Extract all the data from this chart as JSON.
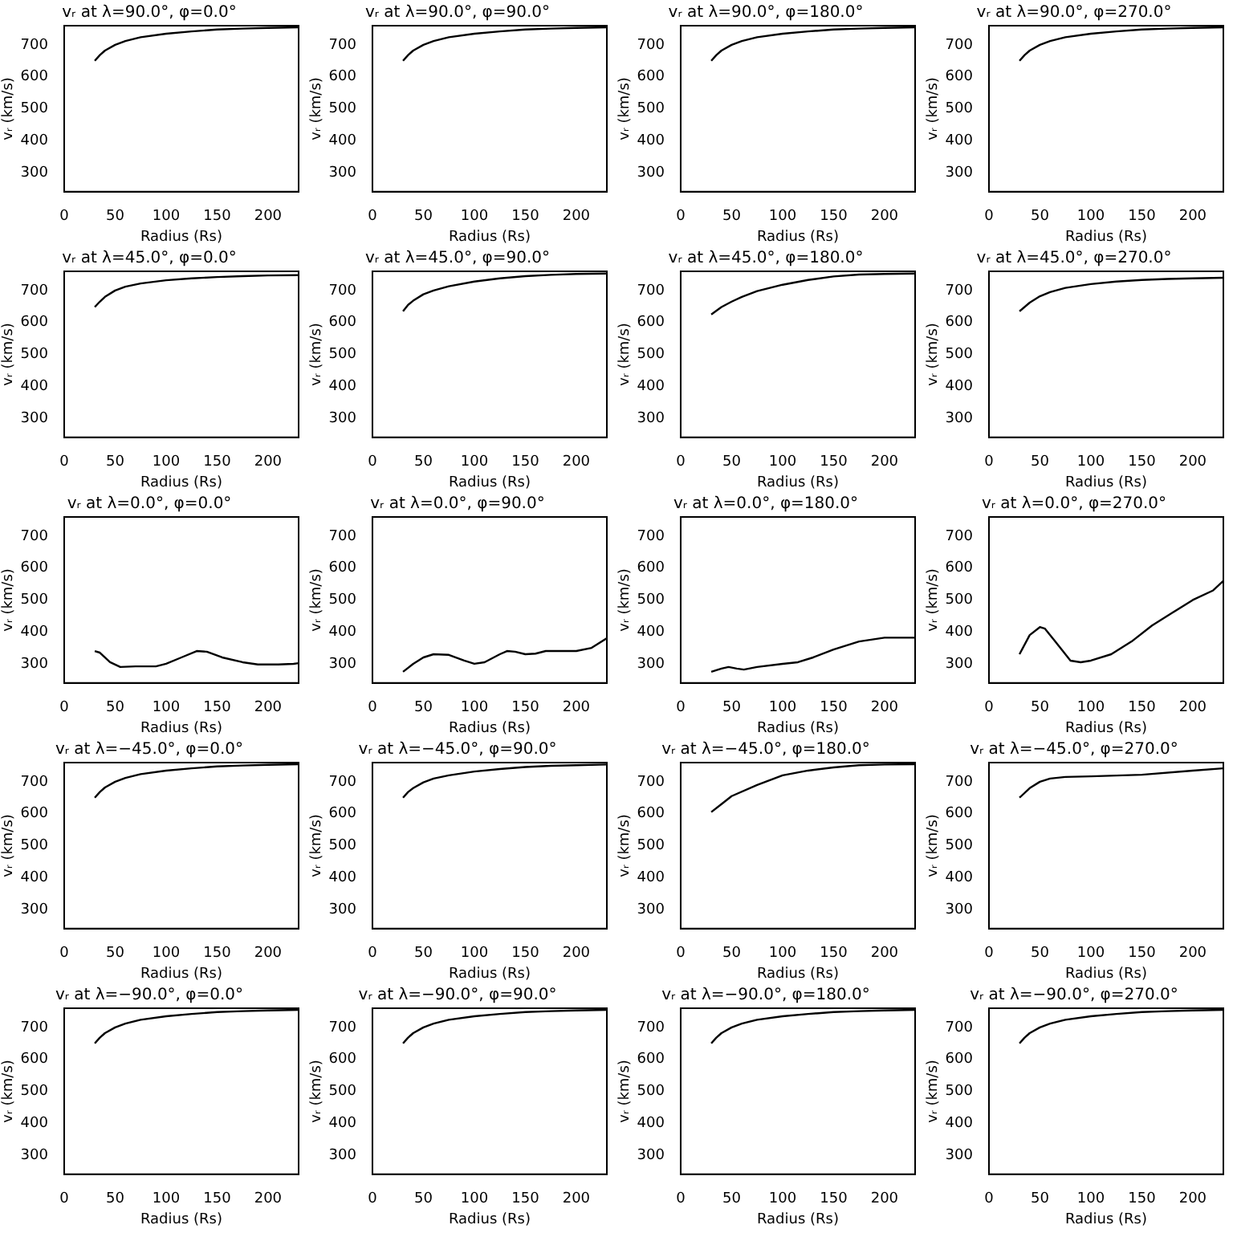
{
  "chart_data": [
    {
      "type": "line",
      "title": "vᵣ at λ=90.0°, φ=0.0°",
      "xlabel": "Radius (Rs)",
      "ylabel": "vᵣ (km/s)",
      "color": "#000000",
      "x": [
        30,
        35,
        40,
        50,
        60,
        75,
        100,
        125,
        150,
        175,
        200,
        230
      ],
      "values": [
        650,
        668,
        682,
        700,
        712,
        724,
        735,
        742,
        748,
        751,
        753,
        755
      ],
      "xlim": [
        0,
        230
      ],
      "ylim": [
        240,
        760
      ],
      "xticks": [
        0,
        50,
        100,
        150,
        200
      ],
      "yticks": [
        300,
        400,
        500,
        600,
        700
      ],
      "grid": false,
      "legend": false,
      "marker": "none"
    },
    {
      "type": "line",
      "title": "vᵣ at λ=90.0°, φ=90.0°",
      "xlabel": "Radius (Rs)",
      "ylabel": "vᵣ (km/s)",
      "color": "#000000",
      "x": [
        30,
        35,
        40,
        50,
        60,
        75,
        100,
        125,
        150,
        175,
        200,
        230
      ],
      "values": [
        650,
        668,
        682,
        700,
        712,
        724,
        735,
        742,
        748,
        751,
        753,
        755
      ],
      "xlim": [
        0,
        230
      ],
      "ylim": [
        240,
        760
      ],
      "xticks": [
        0,
        50,
        100,
        150,
        200
      ],
      "yticks": [
        300,
        400,
        500,
        600,
        700
      ],
      "grid": false,
      "legend": false,
      "marker": "none"
    },
    {
      "type": "line",
      "title": "vᵣ at λ=90.0°, φ=180.0°",
      "xlabel": "Radius (Rs)",
      "ylabel": "vᵣ (km/s)",
      "color": "#000000",
      "x": [
        30,
        35,
        40,
        50,
        60,
        75,
        100,
        125,
        150,
        175,
        200,
        230
      ],
      "values": [
        650,
        668,
        682,
        700,
        712,
        724,
        735,
        742,
        748,
        751,
        753,
        755
      ],
      "xlim": [
        0,
        230
      ],
      "ylim": [
        240,
        760
      ],
      "xticks": [
        0,
        50,
        100,
        150,
        200
      ],
      "yticks": [
        300,
        400,
        500,
        600,
        700
      ],
      "grid": false,
      "legend": false,
      "marker": "none"
    },
    {
      "type": "line",
      "title": "vᵣ at λ=90.0°, φ=270.0°",
      "xlabel": "Radius (Rs)",
      "ylabel": "vᵣ (km/s)",
      "color": "#000000",
      "x": [
        30,
        35,
        40,
        50,
        60,
        75,
        100,
        125,
        150,
        175,
        200,
        230
      ],
      "values": [
        650,
        668,
        682,
        700,
        712,
        724,
        735,
        742,
        748,
        751,
        753,
        755
      ],
      "xlim": [
        0,
        230
      ],
      "ylim": [
        240,
        760
      ],
      "xticks": [
        0,
        50,
        100,
        150,
        200
      ],
      "yticks": [
        300,
        400,
        500,
        600,
        700
      ],
      "grid": false,
      "legend": false,
      "marker": "none"
    },
    {
      "type": "line",
      "title": "vᵣ at λ=45.0°, φ=0.0°",
      "xlabel": "Radius (Rs)",
      "ylabel": "vᵣ (km/s)",
      "color": "#000000",
      "x": [
        30,
        35,
        40,
        50,
        60,
        75,
        100,
        125,
        150,
        175,
        200,
        230
      ],
      "values": [
        648,
        665,
        680,
        700,
        712,
        722,
        732,
        738,
        742,
        745,
        747,
        748
      ],
      "xlim": [
        0,
        230
      ],
      "ylim": [
        240,
        760
      ],
      "xticks": [
        0,
        50,
        100,
        150,
        200
      ],
      "yticks": [
        300,
        400,
        500,
        600,
        700
      ],
      "grid": false,
      "legend": false,
      "marker": "none"
    },
    {
      "type": "line",
      "title": "vᵣ at λ=45.0°, φ=90.0°",
      "xlabel": "Radius (Rs)",
      "ylabel": "vᵣ (km/s)",
      "color": "#000000",
      "x": [
        30,
        35,
        40,
        50,
        60,
        75,
        100,
        125,
        150,
        175,
        200,
        230
      ],
      "values": [
        635,
        655,
        668,
        688,
        700,
        713,
        728,
        738,
        745,
        749,
        752,
        753
      ],
      "xlim": [
        0,
        230
      ],
      "ylim": [
        240,
        760
      ],
      "xticks": [
        0,
        50,
        100,
        150,
        200
      ],
      "yticks": [
        300,
        400,
        500,
        600,
        700
      ],
      "grid": false,
      "legend": false,
      "marker": "none"
    },
    {
      "type": "line",
      "title": "vᵣ at λ=45.0°, φ=180.0°",
      "xlabel": "Radius (Rs)",
      "ylabel": "vᵣ (km/s)",
      "color": "#000000",
      "x": [
        30,
        40,
        50,
        60,
        75,
        100,
        125,
        150,
        175,
        200,
        230
      ],
      "values": [
        625,
        648,
        665,
        680,
        698,
        718,
        733,
        744,
        750,
        752,
        753
      ],
      "xlim": [
        0,
        230
      ],
      "ylim": [
        240,
        760
      ],
      "xticks": [
        0,
        50,
        100,
        150,
        200
      ],
      "yticks": [
        300,
        400,
        500,
        600,
        700
      ],
      "grid": false,
      "legend": false,
      "marker": "none"
    },
    {
      "type": "line",
      "title": "vᵣ at λ=45.0°, φ=270.0°",
      "xlabel": "Radius (Rs)",
      "ylabel": "vᵣ (km/s)",
      "color": "#000000",
      "x": [
        30,
        40,
        50,
        60,
        75,
        100,
        125,
        150,
        175,
        200,
        230
      ],
      "values": [
        635,
        662,
        682,
        695,
        708,
        720,
        728,
        733,
        736,
        738,
        740
      ],
      "xlim": [
        0,
        230
      ],
      "ylim": [
        240,
        760
      ],
      "xticks": [
        0,
        50,
        100,
        150,
        200
      ],
      "yticks": [
        300,
        400,
        500,
        600,
        700
      ],
      "grid": false,
      "legend": false,
      "marker": "none"
    },
    {
      "type": "line",
      "title": "vᵣ at λ=0.0°, φ=0.0°",
      "xlabel": "Radius (Rs)",
      "ylabel": "vᵣ (km/s)",
      "color": "#000000",
      "x": [
        30,
        35,
        45,
        55,
        70,
        90,
        100,
        115,
        130,
        140,
        155,
        175,
        190,
        210,
        225,
        230
      ],
      "values": [
        340,
        335,
        305,
        290,
        292,
        292,
        300,
        320,
        340,
        338,
        320,
        305,
        298,
        298,
        300,
        302
      ],
      "xlim": [
        0,
        230
      ],
      "ylim": [
        240,
        760
      ],
      "xticks": [
        0,
        50,
        100,
        150,
        200
      ],
      "yticks": [
        300,
        400,
        500,
        600,
        700
      ],
      "grid": false,
      "legend": false,
      "marker": "none"
    },
    {
      "type": "line",
      "title": "vᵣ at λ=0.0°, φ=90.0°",
      "xlabel": "Radius (Rs)",
      "ylabel": "vᵣ (km/s)",
      "color": "#000000",
      "x": [
        30,
        40,
        50,
        60,
        75,
        90,
        100,
        110,
        125,
        132,
        140,
        150,
        160,
        170,
        200,
        215,
        230
      ],
      "values": [
        275,
        300,
        320,
        330,
        328,
        310,
        300,
        305,
        330,
        340,
        338,
        330,
        332,
        340,
        340,
        350,
        380
      ],
      "xlim": [
        0,
        230
      ],
      "ylim": [
        240,
        760
      ],
      "xticks": [
        0,
        50,
        100,
        150,
        200
      ],
      "yticks": [
        300,
        400,
        500,
        600,
        700
      ],
      "grid": false,
      "legend": false,
      "marker": "none"
    },
    {
      "type": "line",
      "title": "vᵣ at λ=0.0°, φ=180.0°",
      "xlabel": "Radius (Rs)",
      "ylabel": "vᵣ (km/s)",
      "color": "#000000",
      "x": [
        30,
        40,
        47,
        55,
        62,
        75,
        100,
        115,
        130,
        150,
        175,
        200,
        230
      ],
      "values": [
        275,
        285,
        290,
        285,
        282,
        290,
        300,
        305,
        320,
        345,
        370,
        382,
        382
      ],
      "xlim": [
        0,
        230
      ],
      "ylim": [
        240,
        760
      ],
      "xticks": [
        0,
        50,
        100,
        150,
        200
      ],
      "yticks": [
        300,
        400,
        500,
        600,
        700
      ],
      "grid": false,
      "legend": false,
      "marker": "none"
    },
    {
      "type": "line",
      "title": "vᵣ at λ=0.0°, φ=270.0°",
      "xlabel": "Radius (Rs)",
      "ylabel": "vᵣ (km/s)",
      "color": "#000000",
      "x": [
        30,
        40,
        50,
        55,
        65,
        80,
        90,
        100,
        120,
        140,
        160,
        180,
        200,
        220,
        230
      ],
      "values": [
        330,
        390,
        415,
        410,
        370,
        310,
        305,
        310,
        330,
        370,
        420,
        460,
        500,
        530,
        560
      ],
      "xlim": [
        0,
        230
      ],
      "ylim": [
        240,
        760
      ],
      "xticks": [
        0,
        50,
        100,
        150,
        200
      ],
      "yticks": [
        300,
        400,
        500,
        600,
        700
      ],
      "grid": false,
      "legend": false,
      "marker": "none"
    },
    {
      "type": "line",
      "title": "vᵣ at λ=−45.0°, φ=0.0°",
      "xlabel": "Radius (Rs)",
      "ylabel": "vᵣ (km/s)",
      "color": "#000000",
      "x": [
        30,
        35,
        40,
        50,
        60,
        75,
        100,
        125,
        150,
        175,
        200,
        230
      ],
      "values": [
        650,
        668,
        682,
        700,
        712,
        724,
        735,
        742,
        748,
        751,
        753,
        755
      ],
      "xlim": [
        0,
        230
      ],
      "ylim": [
        240,
        760
      ],
      "xticks": [
        0,
        50,
        100,
        150,
        200
      ],
      "yticks": [
        300,
        400,
        500,
        600,
        700
      ],
      "grid": false,
      "legend": false,
      "marker": "none"
    },
    {
      "type": "line",
      "title": "vᵣ at λ=−45.0°, φ=90.0°",
      "xlabel": "Radius (Rs)",
      "ylabel": "vᵣ (km/s)",
      "color": "#000000",
      "x": [
        30,
        35,
        40,
        50,
        60,
        75,
        100,
        125,
        150,
        175,
        200,
        230
      ],
      "values": [
        650,
        668,
        680,
        698,
        710,
        720,
        732,
        740,
        746,
        750,
        752,
        754
      ],
      "xlim": [
        0,
        230
      ],
      "ylim": [
        240,
        760
      ],
      "xticks": [
        0,
        50,
        100,
        150,
        200
      ],
      "yticks": [
        300,
        400,
        500,
        600,
        700
      ],
      "grid": false,
      "legend": false,
      "marker": "none"
    },
    {
      "type": "line",
      "title": "vᵣ at λ=−45.0°, φ=180.0°",
      "xlabel": "Radius (Rs)",
      "ylabel": "vᵣ (km/s)",
      "color": "#000000",
      "x": [
        30,
        40,
        50,
        75,
        100,
        125,
        150,
        175,
        200,
        230
      ],
      "values": [
        605,
        630,
        655,
        690,
        720,
        735,
        745,
        752,
        754,
        755
      ],
      "xlim": [
        0,
        230
      ],
      "ylim": [
        240,
        760
      ],
      "xticks": [
        0,
        50,
        100,
        150,
        200
      ],
      "yticks": [
        300,
        400,
        500,
        600,
        700
      ],
      "grid": false,
      "legend": false,
      "marker": "none"
    },
    {
      "type": "line",
      "title": "vᵣ at λ=−45.0°, φ=270.0°",
      "xlabel": "Radius (Rs)",
      "ylabel": "vᵣ (km/s)",
      "color": "#000000",
      "x": [
        30,
        40,
        50,
        60,
        75,
        100,
        150,
        200,
        230
      ],
      "values": [
        650,
        680,
        700,
        710,
        715,
        717,
        722,
        735,
        742
      ],
      "xlim": [
        0,
        230
      ],
      "ylim": [
        240,
        760
      ],
      "xticks": [
        0,
        50,
        100,
        150,
        200
      ],
      "yticks": [
        300,
        400,
        500,
        600,
        700
      ],
      "grid": false,
      "legend": false,
      "marker": "none"
    },
    {
      "type": "line",
      "title": "vᵣ at λ=−90.0°, φ=0.0°",
      "xlabel": "Radius (Rs)",
      "ylabel": "vᵣ (km/s)",
      "color": "#000000",
      "x": [
        30,
        35,
        40,
        50,
        60,
        75,
        100,
        125,
        150,
        175,
        200,
        230
      ],
      "values": [
        650,
        668,
        682,
        700,
        712,
        724,
        735,
        742,
        748,
        751,
        753,
        755
      ],
      "xlim": [
        0,
        230
      ],
      "ylim": [
        240,
        760
      ],
      "xticks": [
        0,
        50,
        100,
        150,
        200
      ],
      "yticks": [
        300,
        400,
        500,
        600,
        700
      ],
      "grid": false,
      "legend": false,
      "marker": "none"
    },
    {
      "type": "line",
      "title": "vᵣ at λ=−90.0°, φ=90.0°",
      "xlabel": "Radius (Rs)",
      "ylabel": "vᵣ (km/s)",
      "color": "#000000",
      "x": [
        30,
        35,
        40,
        50,
        60,
        75,
        100,
        125,
        150,
        175,
        200,
        230
      ],
      "values": [
        650,
        668,
        682,
        700,
        712,
        724,
        735,
        742,
        748,
        751,
        753,
        755
      ],
      "xlim": [
        0,
        230
      ],
      "ylim": [
        240,
        760
      ],
      "xticks": [
        0,
        50,
        100,
        150,
        200
      ],
      "yticks": [
        300,
        400,
        500,
        600,
        700
      ],
      "grid": false,
      "legend": false,
      "marker": "none"
    },
    {
      "type": "line",
      "title": "vᵣ at λ=−90.0°, φ=180.0°",
      "xlabel": "Radius (Rs)",
      "ylabel": "vᵣ (km/s)",
      "color": "#000000",
      "x": [
        30,
        35,
        40,
        50,
        60,
        75,
        100,
        125,
        150,
        175,
        200,
        230
      ],
      "values": [
        650,
        668,
        682,
        700,
        712,
        724,
        735,
        742,
        748,
        751,
        753,
        755
      ],
      "xlim": [
        0,
        230
      ],
      "ylim": [
        240,
        760
      ],
      "xticks": [
        0,
        50,
        100,
        150,
        200
      ],
      "yticks": [
        300,
        400,
        500,
        600,
        700
      ],
      "grid": false,
      "legend": false,
      "marker": "none"
    },
    {
      "type": "line",
      "title": "vᵣ at λ=−90.0°, φ=270.0°",
      "xlabel": "Radius (Rs)",
      "ylabel": "vᵣ (km/s)",
      "color": "#000000",
      "x": [
        30,
        35,
        40,
        50,
        60,
        75,
        100,
        125,
        150,
        175,
        200,
        230
      ],
      "values": [
        650,
        668,
        682,
        700,
        712,
        724,
        735,
        742,
        748,
        751,
        753,
        755
      ],
      "xlim": [
        0,
        230
      ],
      "ylim": [
        240,
        760
      ],
      "xticks": [
        0,
        50,
        100,
        150,
        200
      ],
      "yticks": [
        300,
        400,
        500,
        600,
        700
      ],
      "grid": false,
      "legend": false,
      "marker": "none"
    }
  ]
}
